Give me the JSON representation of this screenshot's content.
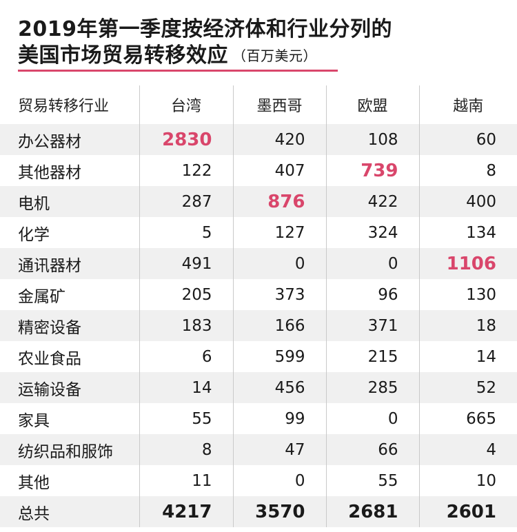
{
  "title": {
    "line1": "2019年第一季度按经济体和行业分列的",
    "line2": "美国市场贸易转移效应",
    "unit": "（百万美元）"
  },
  "colors": {
    "accent": "#d9466b",
    "stripe": "#f0f0f0",
    "text": "#1a1a1a"
  },
  "chart_data": {
    "type": "table",
    "columns": [
      "贸易转移行业",
      "台湾",
      "墨西哥",
      "欧盟",
      "越南"
    ],
    "rows": [
      {
        "sector": "办公器材",
        "values": [
          "2830",
          "420",
          "108",
          "60"
        ],
        "highlight": 0
      },
      {
        "sector": "其他器材",
        "values": [
          "122",
          "407",
          "739",
          "8"
        ],
        "highlight": 2
      },
      {
        "sector": "电机",
        "values": [
          "287",
          "876",
          "422",
          "400"
        ],
        "highlight": 1
      },
      {
        "sector": "化学",
        "values": [
          "5",
          "127",
          "324",
          "134"
        ],
        "highlight": -1
      },
      {
        "sector": "通讯器材",
        "values": [
          "491",
          "0",
          "0",
          "1106"
        ],
        "highlight": 3
      },
      {
        "sector": "金属矿",
        "values": [
          "205",
          "373",
          "96",
          "130"
        ],
        "highlight": -1
      },
      {
        "sector": "精密设备",
        "values": [
          "183",
          "166",
          "371",
          "18"
        ],
        "highlight": -1
      },
      {
        "sector": "农业食品",
        "values": [
          "6",
          "599",
          "215",
          "14"
        ],
        "highlight": -1
      },
      {
        "sector": "运输设备",
        "values": [
          "14",
          "456",
          "285",
          "52"
        ],
        "highlight": -1
      },
      {
        "sector": "家具",
        "values": [
          "55",
          "99",
          "0",
          "665"
        ],
        "highlight": -1
      },
      {
        "sector": "纺织品和服饰",
        "values": [
          "8",
          "47",
          "66",
          "4"
        ],
        "highlight": -1
      },
      {
        "sector": "其他",
        "values": [
          "11",
          "0",
          "55",
          "10"
        ],
        "highlight": -1
      }
    ],
    "total": {
      "sector": "总共",
      "values": [
        "4217",
        "3570",
        "2681",
        "2601"
      ]
    }
  }
}
